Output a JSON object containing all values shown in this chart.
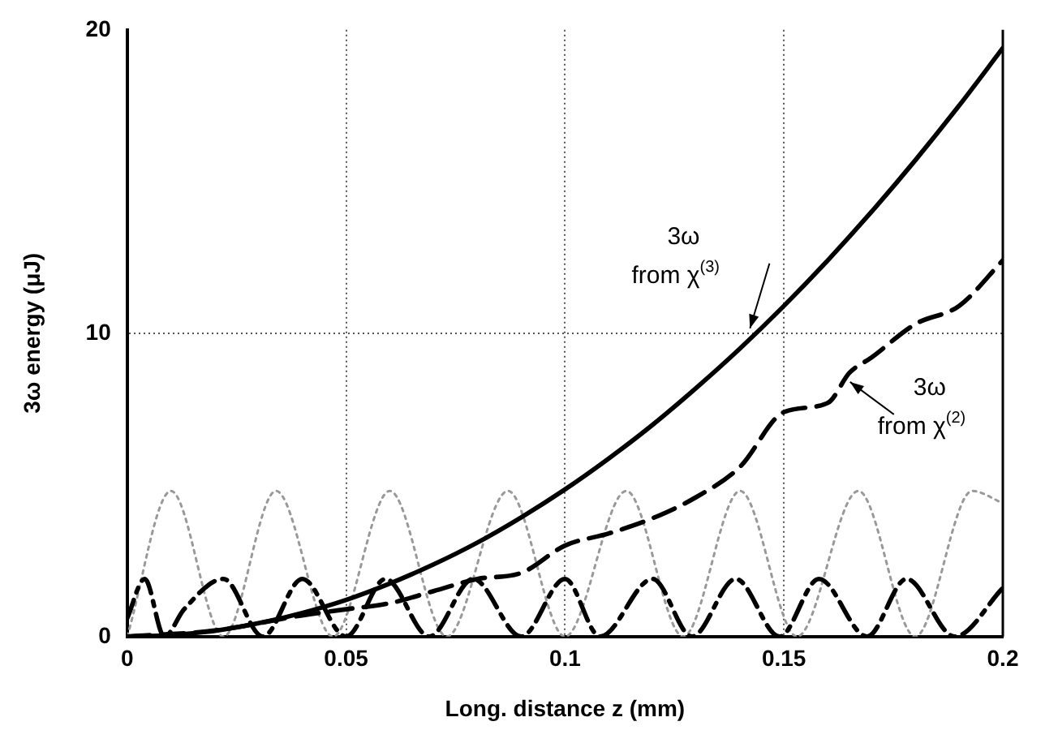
{
  "chart_data": {
    "type": "line",
    "xlabel": "Long. distance z (mm)",
    "ylabel": "3ω energy (μJ)",
    "xlim": [
      0,
      0.2
    ],
    "xticks": [
      0,
      0.05,
      0.1,
      0.15,
      0.2
    ],
    "ylim": [
      0,
      20
    ],
    "yticks": [
      0,
      10,
      20
    ],
    "grid": true,
    "legend": false,
    "marker": "none",
    "series": [
      {
        "color": "#000000",
        "line_style": "solid",
        "x": [
          0,
          0.01,
          0.02,
          0.03,
          0.04,
          0.05,
          0.06,
          0.07,
          0.08,
          0.09,
          0.1,
          0.11,
          0.12,
          0.13,
          0.14,
          0.15,
          0.16,
          0.17,
          0.18,
          0.19,
          0.2
        ],
        "values": [
          0,
          0.05,
          0.19,
          0.44,
          0.78,
          1.21,
          1.75,
          2.38,
          3.1,
          3.93,
          4.85,
          5.87,
          6.98,
          8.2,
          9.5,
          10.9,
          12.4,
          14.0,
          15.7,
          17.5,
          19.4
        ]
      },
      {
        "color": "#000000",
        "line_style": "dashed",
        "x": [
          0,
          0.02,
          0.04,
          0.05,
          0.06,
          0.07,
          0.08,
          0.09,
          0.1,
          0.11,
          0.12,
          0.13,
          0.14,
          0.15,
          0.16,
          0.165,
          0.17,
          0.18,
          0.19,
          0.2
        ],
        "values": [
          0,
          0.2,
          0.7,
          0.9,
          1.1,
          1.5,
          1.9,
          2.1,
          3.0,
          3.4,
          3.9,
          4.6,
          5.6,
          7.4,
          7.7,
          8.7,
          9.2,
          10.3,
          10.9,
          12.4
        ]
      },
      {
        "color": "#000000",
        "line_style": "dashdot",
        "x": [
          0,
          0.004,
          0.0085,
          0.013,
          0.022,
          0.031,
          0.04,
          0.05,
          0.059,
          0.069,
          0.079,
          0.09,
          0.1,
          0.108,
          0.12,
          0.129,
          0.139,
          0.149,
          0.158,
          0.169,
          0.178,
          0.189,
          0.2
        ],
        "values": [
          0.6,
          1.9,
          0,
          0.9,
          1.9,
          0,
          1.9,
          0,
          1.9,
          0,
          1.9,
          0,
          1.9,
          0,
          1.9,
          0,
          1.9,
          0,
          1.9,
          0,
          1.9,
          0,
          1.6
        ]
      },
      {
        "color": "#999999",
        "line_style": "dotted",
        "x": [
          0,
          0.01,
          0.022,
          0.034,
          0.047,
          0.06,
          0.073,
          0.087,
          0.1,
          0.114,
          0.127,
          0.14,
          0.153,
          0.167,
          0.18,
          0.193,
          0.2
        ],
        "values": [
          0,
          4.8,
          0,
          4.8,
          0,
          4.8,
          0,
          4.8,
          0,
          4.8,
          0,
          4.8,
          0,
          4.8,
          0,
          4.8,
          4.4
        ]
      }
    ],
    "annotations": [
      {
        "text": "3ω\nfrom χ$^{(3)}$",
        "x": 0.143,
        "y": 10
      },
      {
        "text": "3ω\nfrom χ$^{(2)}$",
        "x": 0.164,
        "y": 8.5
      }
    ]
  }
}
